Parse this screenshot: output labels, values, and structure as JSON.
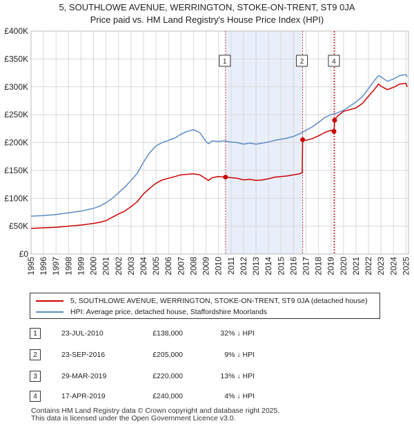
{
  "title_line1": "5, SOUTHLOWE AVENUE, WERRINGTON, STOKE-ON-TRENT, ST9 0JA",
  "title_line2": "Price paid vs. HM Land Registry's House Price Index (HPI)",
  "chart_data": {
    "type": "line",
    "xlim": [
      1995.0,
      2025.2
    ],
    "ylim": [
      0,
      400000
    ],
    "y_ticks": [
      {
        "value": 0,
        "label": "£0"
      },
      {
        "value": 50000,
        "label": "£50K"
      },
      {
        "value": 100000,
        "label": "£100K"
      },
      {
        "value": 150000,
        "label": "£150K"
      },
      {
        "value": 200000,
        "label": "£200K"
      },
      {
        "value": 250000,
        "label": "£250K"
      },
      {
        "value": 300000,
        "label": "£300K"
      },
      {
        "value": 350000,
        "label": "£350K"
      },
      {
        "value": 400000,
        "label": "£400K"
      }
    ],
    "x_ticks": [
      "1995",
      "1996",
      "1997",
      "1998",
      "1999",
      "2000",
      "2001",
      "2002",
      "2003",
      "2004",
      "2005",
      "2006",
      "2007",
      "2008",
      "2009",
      "2010",
      "2011",
      "2012",
      "2013",
      "2014",
      "2015",
      "2016",
      "2017",
      "2018",
      "2019",
      "2020",
      "2021",
      "2022",
      "2023",
      "2024",
      "2025"
    ],
    "grid": true,
    "shaded_span": [
      2010.56,
      2016.73
    ],
    "series": [
      {
        "name": "5, SOUTHLOWE AVENUE, WERRINGTON, STOKE-ON-TRENT, ST9 0JA (detached house)",
        "color": "#cc0000",
        "x": [
          1995.0,
          1996.0,
          1997.0,
          1998.0,
          1999.0,
          2000.0,
          2000.5,
          2001.0,
          2001.5,
          2002.0,
          2002.5,
          2003.0,
          2003.5,
          2004.0,
          2004.5,
          2005.0,
          2005.5,
          2006.0,
          2006.5,
          2007.0,
          2007.5,
          2008.0,
          2008.5,
          2009.0,
          2009.2,
          2009.5,
          2010.0,
          2010.56,
          2011.0,
          2011.5,
          2012.0,
          2012.5,
          2013.0,
          2013.5,
          2014.0,
          2014.5,
          2015.0,
          2015.5,
          2016.0,
          2016.5,
          2016.7,
          2016.73,
          2017.0,
          2017.5,
          2018.0,
          2018.5,
          2019.0,
          2019.24,
          2019.29,
          2019.5,
          2020.0,
          2020.5,
          2021.0,
          2021.5,
          2022.0,
          2022.5,
          2022.8,
          2023.0,
          2023.5,
          2024.0,
          2024.5,
          2025.0,
          2025.1
        ],
        "y": [
          46000,
          47000,
          48000,
          50000,
          52000,
          55000,
          57000,
          60000,
          66000,
          72000,
          77000,
          85000,
          94000,
          108000,
          118000,
          127000,
          133000,
          136000,
          139000,
          142000,
          143000,
          144000,
          142000,
          135000,
          132000,
          137000,
          139000,
          138000,
          137000,
          136000,
          133000,
          134000,
          132000,
          133000,
          135000,
          138000,
          139000,
          140000,
          142000,
          144000,
          146000,
          205000,
          204000,
          207000,
          212000,
          218000,
          222000,
          220000,
          240000,
          247000,
          256000,
          259000,
          262000,
          270000,
          283000,
          296000,
          305000,
          301000,
          295000,
          299000,
          305000,
          306000,
          300000
        ]
      },
      {
        "name": "HPI: Average price, detached house, Staffordshire Moorlands",
        "color": "#5b8ac6",
        "x": [
          1995.0,
          1996.0,
          1997.0,
          1998.0,
          1999.0,
          2000.0,
          2000.5,
          2001.0,
          2001.5,
          2002.0,
          2002.5,
          2003.0,
          2003.5,
          2004.0,
          2004.5,
          2005.0,
          2005.5,
          2006.0,
          2006.5,
          2007.0,
          2007.5,
          2008.0,
          2008.5,
          2009.0,
          2009.2,
          2009.5,
          2010.0,
          2010.5,
          2011.0,
          2011.5,
          2012.0,
          2012.5,
          2013.0,
          2013.5,
          2014.0,
          2014.5,
          2015.0,
          2015.5,
          2016.0,
          2016.5,
          2017.0,
          2017.5,
          2018.0,
          2018.5,
          2019.0,
          2019.5,
          2020.0,
          2020.5,
          2021.0,
          2021.5,
          2022.0,
          2022.5,
          2022.8,
          2023.0,
          2023.5,
          2024.0,
          2024.5,
          2025.0,
          2025.1
        ],
        "y": [
          68000,
          69000,
          71000,
          74000,
          77000,
          82000,
          86000,
          92000,
          100000,
          110000,
          120000,
          132000,
          145000,
          165000,
          182000,
          194000,
          200000,
          204000,
          208000,
          215000,
          220000,
          223000,
          218000,
          202000,
          198000,
          203000,
          202000,
          203000,
          201000,
          200000,
          197000,
          199000,
          197000,
          199000,
          201000,
          204000,
          206000,
          208000,
          211000,
          216000,
          222000,
          228000,
          236000,
          245000,
          250000,
          253000,
          258000,
          265000,
          273000,
          282000,
          297000,
          312000,
          320000,
          318000,
          310000,
          314000,
          320000,
          322000,
          318000
        ]
      }
    ],
    "markers": [
      {
        "n": "1",
        "x": 2010.56,
        "y": 138000
      },
      {
        "n": "2",
        "x": 2016.73,
        "y": 205000
      },
      {
        "n": "3",
        "x": 2019.24,
        "y": 220000
      },
      {
        "n": "4",
        "x": 2019.29,
        "y": 240000
      }
    ],
    "boxes": [
      {
        "n": "1",
        "x": 2010.56
      },
      {
        "n": "2",
        "x": 2016.73
      },
      {
        "n": "4",
        "x": 2019.29
      }
    ],
    "marker_color": "#cc0000"
  },
  "transactions": [
    {
      "n": "1",
      "date": "23-JUL-2010",
      "price": "£138,000",
      "hpi": "32% ↓ HPI"
    },
    {
      "n": "2",
      "date": "23-SEP-2016",
      "price": "£205,000",
      "hpi": "9% ↓ HPI"
    },
    {
      "n": "3",
      "date": "29-MAR-2019",
      "price": "£220,000",
      "hpi": "13% ↓ HPI"
    },
    {
      "n": "4",
      "date": "17-APR-2019",
      "price": "£240,000",
      "hpi": "4% ↓ HPI"
    }
  ],
  "footer_line1": "Contains HM Land Registry data © Crown copyright and database right 2025.",
  "footer_line2": "This data is licensed under the Open Government Licence v3.0."
}
